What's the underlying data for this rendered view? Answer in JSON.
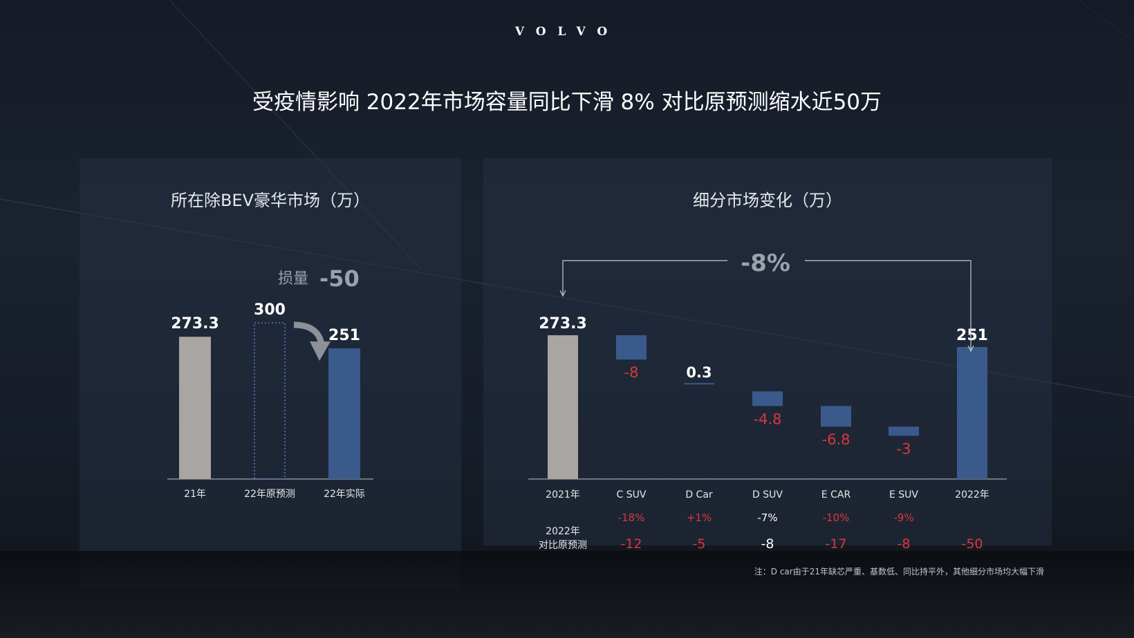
{
  "logo": "VOLVO",
  "headline": "受疫情影响  2022年市场容量同比下滑 8%  对比原预测缩水近50万",
  "note": "注：D car由于21年缺芯严重、基数低、同比持平外，其他细分市场均大幅下滑",
  "colors": {
    "gray_bar": "#a8a5a2",
    "blue_bar": "#3b5a8c",
    "red_text": "#d9383c",
    "dotted": "#4a6aa8"
  },
  "chart_data": [
    {
      "type": "bar",
      "title": "所在除BEV豪华市场（万）",
      "categories": [
        "21年",
        "22年原预测",
        "22年实际"
      ],
      "values": [
        273.3,
        300,
        251
      ],
      "value_labels": [
        "273.3",
        "300",
        "251"
      ],
      "styles": [
        "solid-gray",
        "dotted-outline",
        "solid-blue"
      ],
      "annotation": {
        "label": "损量",
        "value": "-50"
      },
      "ylim": [
        0,
        300
      ]
    },
    {
      "type": "bar",
      "subtype": "waterfall",
      "title": "细分市场变化（万）",
      "categories": [
        "2021年",
        "C SUV",
        "D Car",
        "D SUV",
        "E CAR",
        "E SUV",
        "2022年"
      ],
      "values": [
        273.3,
        -8,
        0.3,
        -4.8,
        -6.8,
        -3,
        251
      ],
      "value_labels": [
        "273.3",
        "-8",
        "0.3",
        "-4.8",
        "-6.8",
        "-3",
        "251"
      ],
      "total_change": "-8%",
      "yoy_pct": [
        "",
        "-18%",
        "+1%",
        "-7%",
        "-10%",
        "-9%",
        ""
      ],
      "vs_forecast_label": [
        "2022年",
        "对比原预测"
      ],
      "vs_forecast": [
        "",
        "-12",
        "-5",
        "-8",
        "-17",
        "-8",
        "-50"
      ]
    }
  ]
}
